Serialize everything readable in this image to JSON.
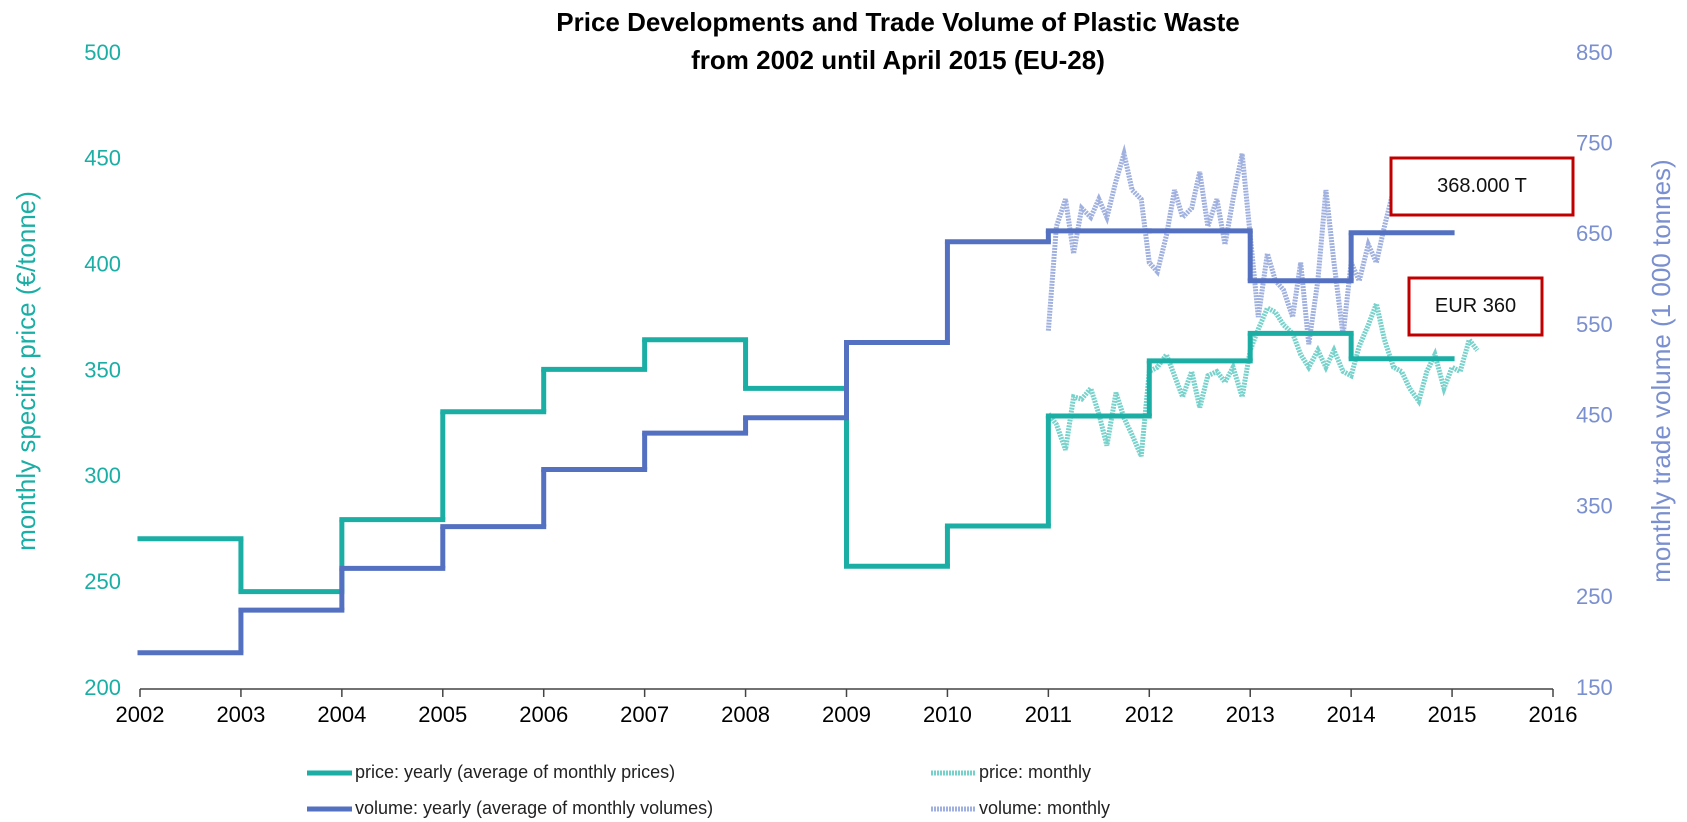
{
  "chart_data": {
    "type": "line",
    "title": [
      "Price Developments and Trade Volume of Plastic Waste",
      "from 2002 until  April 2015 (EU-28)"
    ],
    "ylabel": "monthly specific price (€/tonne)",
    "y2label": "monthly trade volume (1 000 tonnes)",
    "xlim": [
      2002,
      2016
    ],
    "xticks": [
      2002,
      2003,
      2004,
      2005,
      2006,
      2007,
      2008,
      2009,
      2010,
      2011,
      2012,
      2013,
      2014,
      2015,
      2016
    ],
    "ylim": [
      200,
      500
    ],
    "yticks": [
      200,
      250,
      300,
      350,
      400,
      450,
      500
    ],
    "y2lim": [
      150,
      850
    ],
    "y2ticks": [
      150,
      250,
      350,
      450,
      550,
      650,
      750,
      850
    ],
    "series": [
      {
        "name": "price: yearly (average of monthly prices)",
        "color": "#1aaea5",
        "step": true,
        "axis": "y",
        "x": [
          2002,
          2003,
          2004,
          2005,
          2006,
          2007,
          2008,
          2009,
          2010,
          2011,
          2012,
          2013,
          2014
        ],
        "values": [
          271,
          246,
          280,
          331,
          351,
          365,
          342,
          258,
          277,
          329,
          355,
          368,
          356
        ]
      },
      {
        "name": "price: monthly",
        "color": "#5fcac3",
        "step": false,
        "axis": "y",
        "x": [
          2011,
          2011.08,
          2011.17,
          2011.25,
          2011.33,
          2011.42,
          2011.5,
          2011.58,
          2011.67,
          2011.75,
          2011.83,
          2011.92,
          2012,
          2012.08,
          2012.17,
          2012.25,
          2012.33,
          2012.42,
          2012.5,
          2012.58,
          2012.67,
          2012.75,
          2012.83,
          2012.92,
          2013,
          2013.08,
          2013.17,
          2013.25,
          2013.33,
          2013.42,
          2013.5,
          2013.58,
          2013.67,
          2013.75,
          2013.83,
          2013.92,
          2014,
          2014.08,
          2014.17,
          2014.25,
          2014.33,
          2014.42,
          2014.5,
          2014.58,
          2014.67,
          2014.75,
          2014.83,
          2014.92,
          2015,
          2015.08,
          2015.17,
          2015.25
        ],
        "values": [
          330,
          325,
          313,
          338,
          337,
          342,
          330,
          315,
          340,
          328,
          320,
          310,
          350,
          352,
          358,
          348,
          338,
          350,
          333,
          348,
          350,
          345,
          352,
          338,
          360,
          370,
          380,
          378,
          372,
          368,
          358,
          352,
          360,
          352,
          360,
          350,
          348,
          362,
          372,
          382,
          365,
          352,
          350,
          342,
          336,
          350,
          358,
          342,
          352,
          350,
          365,
          360
        ]
      },
      {
        "name": "volume: yearly (average of monthly volumes)",
        "color": "#5470c0",
        "step": true,
        "axis": "y2",
        "x": [
          2002,
          2003,
          2004,
          2005,
          2006,
          2007,
          2008,
          2009,
          2010,
          2011,
          2012,
          2013,
          2014
        ],
        "values": [
          190,
          237,
          283,
          329,
          392,
          432,
          449,
          532,
          643,
          655,
          655,
          600,
          653
        ]
      },
      {
        "name": "volume: monthly",
        "color": "#8fa3db",
        "step": false,
        "axis": "y2",
        "x": [
          2011,
          2011.08,
          2011.17,
          2011.25,
          2011.33,
          2011.42,
          2011.5,
          2011.58,
          2011.67,
          2011.75,
          2011.83,
          2011.92,
          2012,
          2012.08,
          2012.17,
          2012.25,
          2012.33,
          2012.42,
          2012.5,
          2012.58,
          2012.67,
          2012.75,
          2012.83,
          2012.92,
          2013,
          2013.08,
          2013.17,
          2013.25,
          2013.33,
          2013.42,
          2013.5,
          2013.58,
          2013.67,
          2013.75,
          2013.83,
          2013.92,
          2014,
          2014.08,
          2014.17,
          2014.25,
          2014.33,
          2014.42
        ],
        "values": [
          545,
          660,
          690,
          630,
          680,
          670,
          690,
          670,
          710,
          740,
          700,
          690,
          620,
          610,
          650,
          700,
          670,
          680,
          720,
          660,
          690,
          640,
          690,
          740,
          650,
          560,
          630,
          600,
          590,
          560,
          620,
          530,
          600,
          700,
          620,
          540,
          620,
          600,
          640,
          620,
          660,
          700
        ]
      }
    ],
    "annotations": [
      "368.000  T",
      "EUR 360"
    ],
    "legend": "bottom"
  }
}
